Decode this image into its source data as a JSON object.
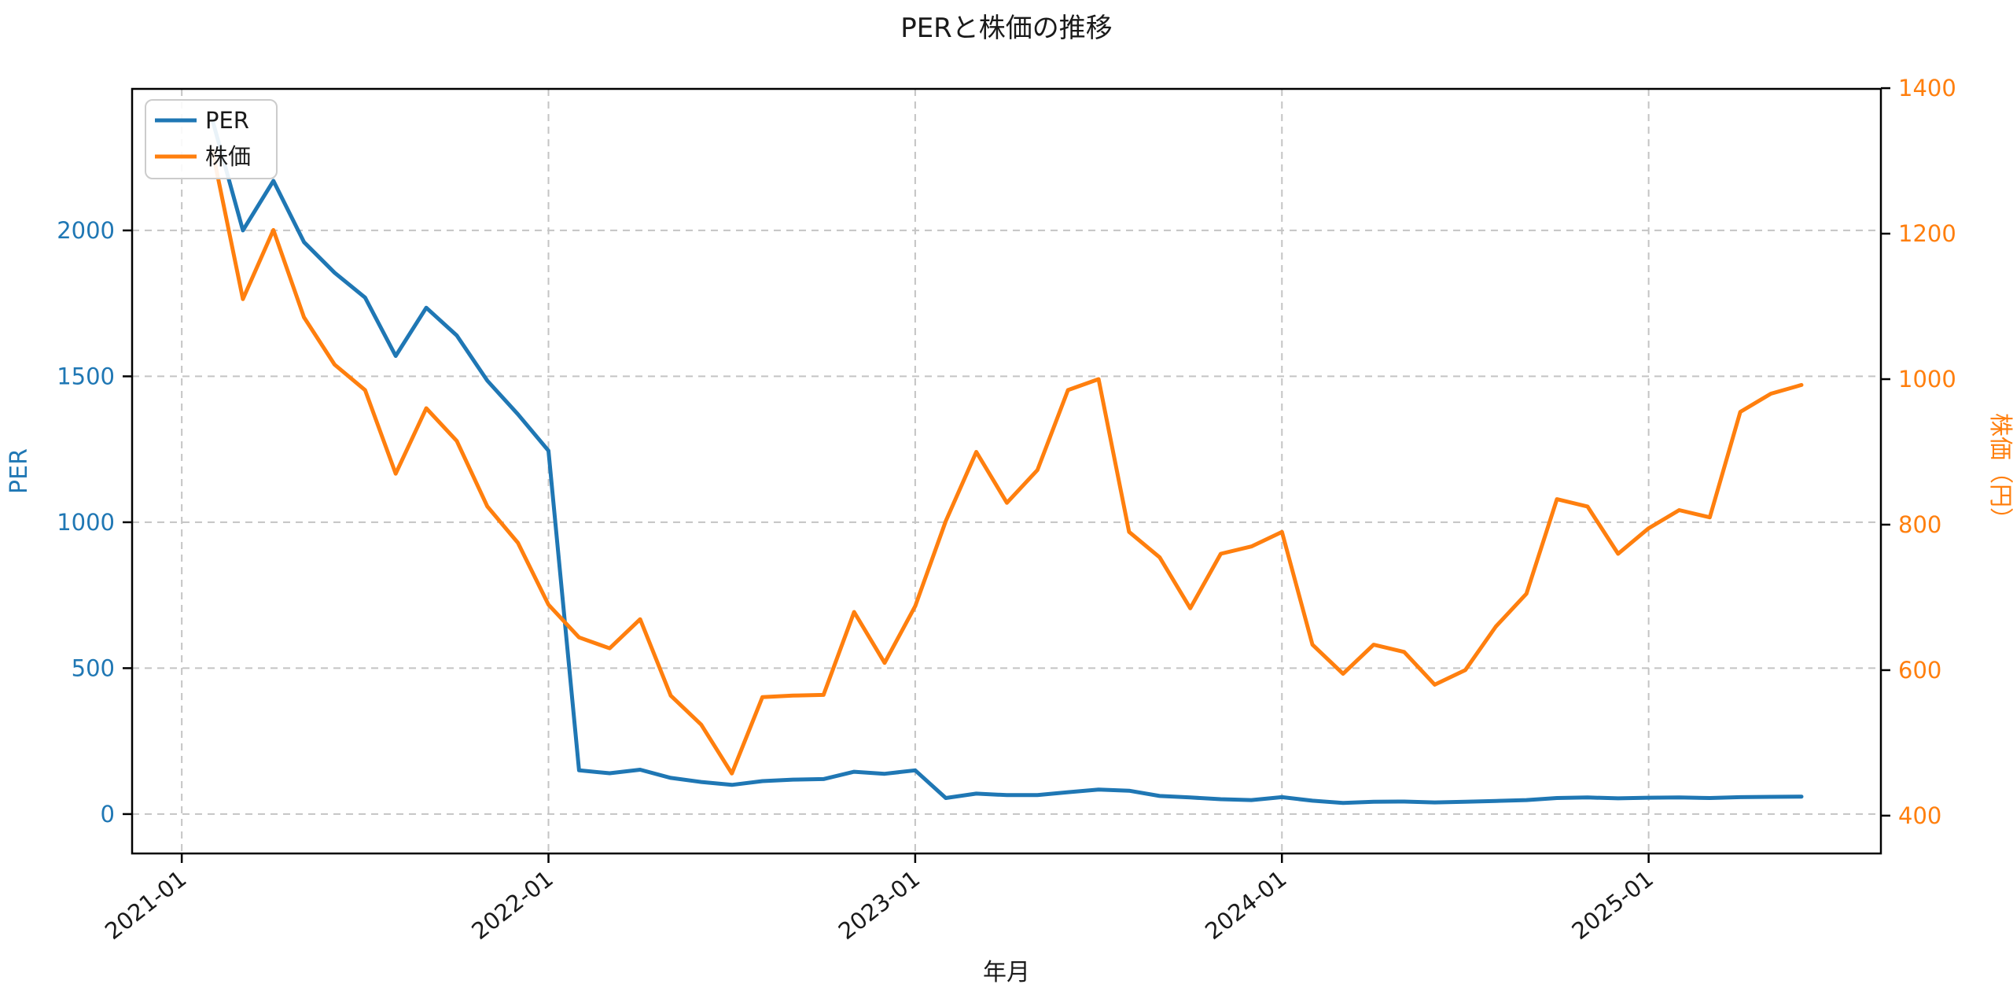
{
  "title": "PERと株価の推移",
  "xlabel": "年月",
  "ylabel_left": "PER",
  "ylabel_right": "株価（円）",
  "legend": {
    "per": "PER",
    "kabuka": "株価"
  },
  "colors": {
    "per": "#1f77b4",
    "kabuka": "#ff7f0e",
    "grid": "#c4c4c4",
    "spine": "#000000",
    "text": "#1a1a1a",
    "background": "#ffffff"
  },
  "chart_data": {
    "type": "line",
    "title": "PERと株価の推移",
    "xlabel": "年月",
    "ylabel_left": "PER",
    "ylabel_right": "株価（円）",
    "grid": true,
    "legend_position": "upper left",
    "x_tick_labels": [
      "2021-01",
      "2022-01",
      "2023-01",
      "2024-01",
      "2025-01"
    ],
    "x_tick_index": [
      -1,
      11,
      23,
      35,
      47
    ],
    "y_left_ticks": [
      0,
      500,
      1000,
      1500,
      2000
    ],
    "y_right_ticks": [
      400,
      600,
      800,
      1000,
      1200,
      1400
    ],
    "ylim_left": [
      -135,
      2485
    ],
    "ylim_right": [
      348,
      1399
    ],
    "xlim_index": [
      -2.625,
      54.6
    ],
    "months": [
      "2021-01",
      "2021-02",
      "2021-03",
      "2021-04",
      "2021-05",
      "2021-06",
      "2021-07",
      "2021-08",
      "2021-09",
      "2021-10",
      "2021-11",
      "2021-12",
      "2022-01",
      "2022-02",
      "2022-03",
      "2022-04",
      "2022-05",
      "2022-06",
      "2022-07",
      "2022-08",
      "2022-09",
      "2022-10",
      "2022-11",
      "2022-12",
      "2023-01",
      "2023-02",
      "2023-03",
      "2023-04",
      "2023-05",
      "2023-06",
      "2023-07",
      "2023-08",
      "2023-09",
      "2023-10",
      "2023-11",
      "2023-12",
      "2024-01",
      "2024-02",
      "2024-03",
      "2024-04",
      "2024-05",
      "2024-06",
      "2024-07",
      "2024-08",
      "2024-09",
      "2024-10",
      "2024-11",
      "2024-12",
      "2025-01",
      "2025-02",
      "2025-03",
      "2025-04",
      "2025-05"
    ],
    "series": [
      {
        "name": "PER",
        "axis": "left",
        "color": "#1f77b4",
        "values": [
          2380,
          2000,
          2170,
          1960,
          1855,
          1770,
          1570,
          1735,
          1640,
          1485,
          1370,
          1245,
          150,
          140,
          152,
          124,
          110,
          100,
          113,
          118,
          120,
          145,
          138,
          150,
          55,
          70,
          65,
          65,
          75,
          84,
          80,
          62,
          57,
          51,
          48,
          58,
          46,
          38,
          42,
          43,
          40,
          42,
          45,
          48,
          55,
          57,
          54,
          56,
          57,
          55,
          58,
          59,
          60
        ]
      },
      {
        "name": "株価",
        "axis": "right",
        "color": "#ff7f0e",
        "values": [
          1315,
          1110,
          1205,
          1085,
          1020,
          985,
          870,
          960,
          915,
          825,
          775,
          690,
          645,
          630,
          670,
          565,
          525,
          458,
          563,
          565,
          566,
          680,
          610,
          688,
          805,
          900,
          830,
          875,
          985,
          1000,
          790,
          755,
          685,
          760,
          770,
          790,
          635,
          595,
          635,
          625,
          580,
          600,
          660,
          705,
          835,
          825,
          760,
          795,
          820,
          810,
          955,
          980,
          992
        ]
      }
    ]
  }
}
